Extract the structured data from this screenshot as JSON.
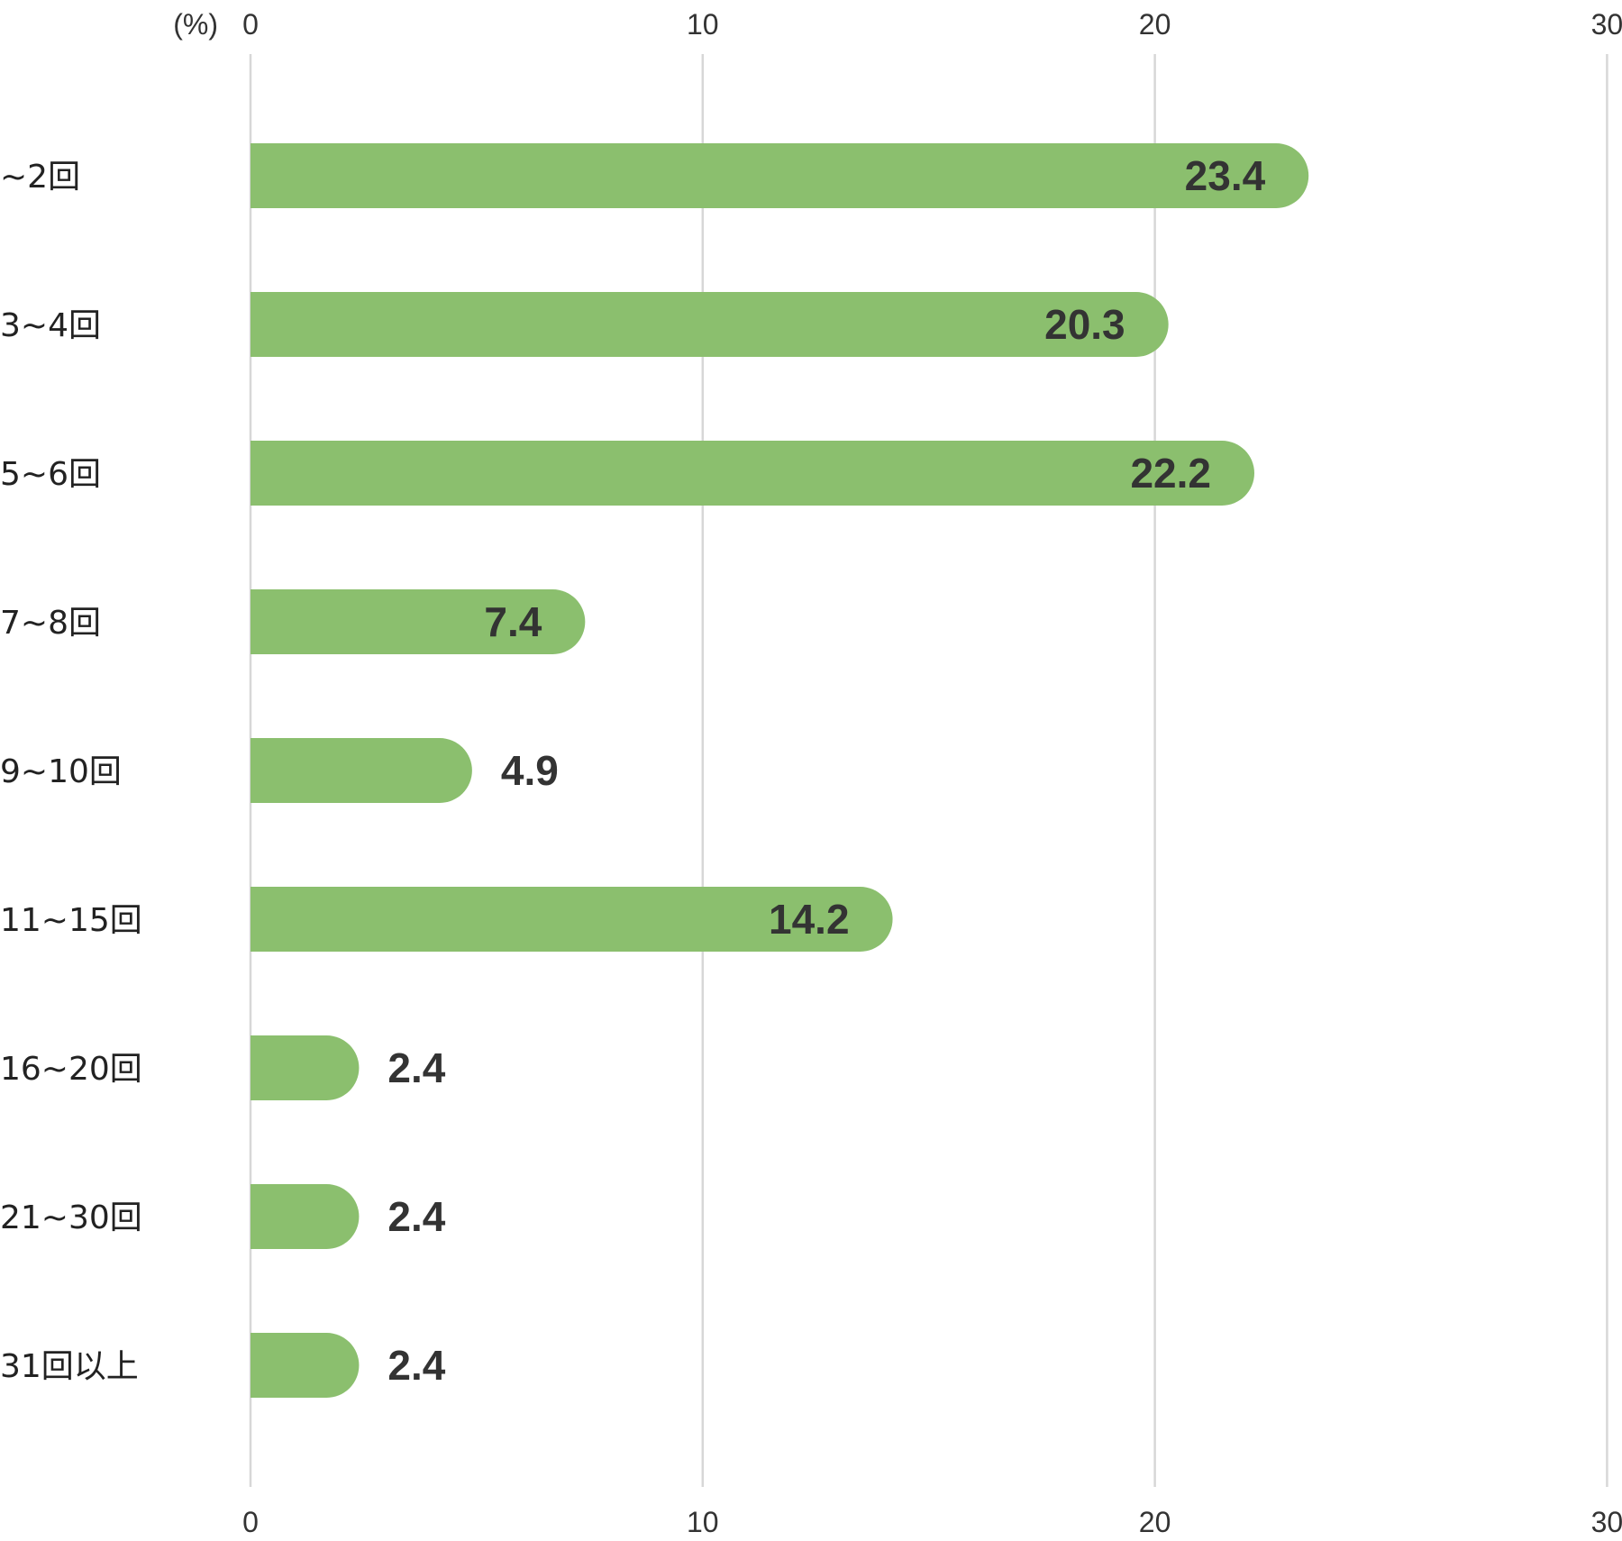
{
  "chart_data": {
    "type": "bar",
    "orientation": "horizontal",
    "unit_label": "(%)",
    "categories": [
      "~2回",
      "3~4回",
      "5~6回",
      "7~8回",
      "9~10回",
      "11~15回",
      "16~20回",
      "21~30回",
      "31回以上"
    ],
    "values": [
      23.4,
      20.3,
      22.2,
      7.4,
      4.9,
      14.2,
      2.4,
      2.4,
      2.4
    ],
    "value_labels": [
      "23.4",
      "20.3",
      "22.2",
      "7.4",
      "4.9",
      "14.2",
      "2.4",
      "2.4",
      "2.4"
    ],
    "xlim": [
      0,
      30
    ],
    "ticks": [
      "0",
      "10",
      "20",
      "30"
    ],
    "grid": true,
    "bar_color": "#8bbf6e",
    "title": "",
    "xlabel": "",
    "ylabel": ""
  }
}
